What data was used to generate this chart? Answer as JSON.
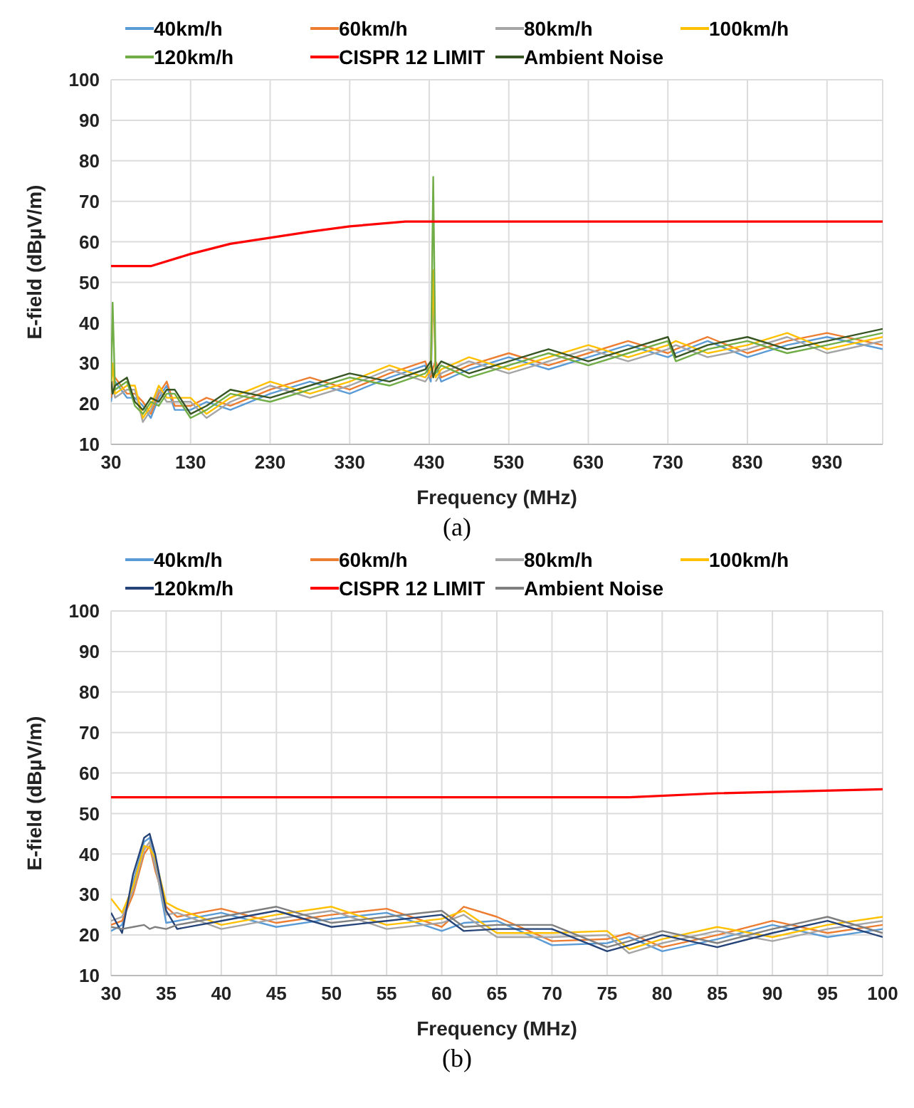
{
  "chart_data": [
    {
      "type": "line",
      "xlabel": "Frequency (MHz)",
      "ylabel": "E-field (dBµV/m)",
      "annotations": [
        "(a)"
      ],
      "legend": "top",
      "grid": true,
      "xlim": [
        30,
        1000
      ],
      "xticks": [
        30,
        130,
        230,
        330,
        430,
        530,
        630,
        730,
        830,
        930
      ],
      "ylim": [
        10,
        100
      ],
      "yticks": [
        10,
        20,
        30,
        40,
        50,
        60,
        70,
        80,
        90,
        100
      ],
      "x": [
        30,
        32,
        35,
        50,
        60,
        70,
        80,
        90,
        100,
        110,
        130,
        150,
        180,
        230,
        280,
        330,
        380,
        425,
        432,
        435,
        438,
        445,
        480,
        530,
        580,
        630,
        680,
        730,
        740,
        780,
        830,
        880,
        930,
        1000
      ],
      "series": [
        {
          "name": "40km/h",
          "color": "#5b9bd5",
          "values": [
            20.5,
            23.5,
            25.5,
            21.5,
            21.5,
            19.5,
            16.5,
            21.5,
            24.5,
            18.5,
            18.5,
            20.5,
            18.5,
            22.5,
            25.5,
            22.5,
            26.5,
            29.5,
            25.5,
            48,
            29.5,
            25.5,
            28.5,
            31.5,
            28.5,
            31.5,
            34.5,
            31.5,
            32.5,
            35.5,
            31.5,
            34.5,
            36.5,
            33.5
          ]
        },
        {
          "name": "60km/h",
          "color": "#ed7d31",
          "values": [
            21.5,
            24.5,
            26.5,
            22.5,
            22.5,
            20.5,
            17.5,
            22.5,
            25.5,
            19.5,
            19.5,
            21.5,
            19.5,
            23.5,
            26.5,
            23.5,
            27.5,
            30.5,
            26.5,
            29,
            30.5,
            26.5,
            29.5,
            32.5,
            29.5,
            32.5,
            35.5,
            32.5,
            33.5,
            36.5,
            32.5,
            35.5,
            37.5,
            34.5
          ]
        },
        {
          "name": "80km/h",
          "color": "#a5a5a5",
          "values": [
            22.5,
            25.5,
            21.5,
            23.5,
            23.5,
            15.5,
            18.5,
            23.5,
            20.5,
            20.5,
            20.5,
            16.5,
            20.5,
            24.5,
            21.5,
            24.5,
            28.5,
            25.5,
            27.5,
            null,
            25.5,
            27.5,
            30.5,
            27.5,
            30.5,
            33.5,
            30.5,
            33.5,
            34.5,
            31.5,
            33.5,
            36.5,
            32.5,
            35.5
          ]
        },
        {
          "name": "100km/h",
          "color": "#ffc000",
          "values": [
            23.5,
            30,
            22.5,
            24.5,
            24.5,
            16.5,
            19.5,
            24.5,
            21.5,
            21.5,
            21.5,
            17.5,
            21.5,
            25.5,
            22.5,
            25.5,
            29.5,
            26.5,
            28.5,
            53,
            26.5,
            28.5,
            31.5,
            28.5,
            31.5,
            34.5,
            31.5,
            34.5,
            35.5,
            32.5,
            34.5,
            37.5,
            33.5,
            36.5
          ]
        },
        {
          "name": "120km/h",
          "color": "#70ad47",
          "values": [
            24.5,
            45,
            23.5,
            25.5,
            19.5,
            17.5,
            20.5,
            19.5,
            22.5,
            22.5,
            16.5,
            18.5,
            22.5,
            20.5,
            23.5,
            26.5,
            24.5,
            27.5,
            29.5,
            76,
            27.5,
            29.5,
            26.5,
            29.5,
            32.5,
            29.5,
            32.5,
            35.5,
            30.5,
            33.5,
            35.5,
            32.5,
            34.5,
            37.5
          ]
        },
        {
          "name": "CISPR 12 LIMIT",
          "color": "#ff0000",
          "x": [
            30,
            80,
            130,
            180,
            230,
            280,
            330,
            400,
            1000
          ],
          "values": [
            54,
            54,
            57,
            59.5,
            61,
            62.5,
            63.8,
            65,
            65
          ]
        },
        {
          "name": "Ambient Noise",
          "color": "#375623",
          "values": [
            25.5,
            22.5,
            24.5,
            26.5,
            20.5,
            18.5,
            21.5,
            20.5,
            23.5,
            23.5,
            17.5,
            19.5,
            23.5,
            21.5,
            24.5,
            27.5,
            25.5,
            28.5,
            30.5,
            26.5,
            28.5,
            30.5,
            27.5,
            30.5,
            33.5,
            30.5,
            33.5,
            36.5,
            31.5,
            34.5,
            36.5,
            33.5,
            35.5,
            38.5
          ]
        }
      ]
    },
    {
      "type": "line",
      "xlabel": "Frequency (MHz)",
      "ylabel": "E-field (dBµV/m)",
      "annotations": [
        "(b)"
      ],
      "legend": "top",
      "grid": true,
      "xlim": [
        30,
        100
      ],
      "xticks": [
        30,
        35,
        40,
        45,
        50,
        55,
        60,
        65,
        70,
        75,
        80,
        85,
        90,
        95,
        100
      ],
      "ylim": [
        10,
        100
      ],
      "yticks": [
        10,
        20,
        30,
        40,
        50,
        60,
        70,
        80,
        90,
        100
      ],
      "x": [
        30,
        31,
        32,
        33,
        33.5,
        34,
        35,
        36,
        40,
        45,
        50,
        55,
        60,
        62,
        65,
        70,
        75,
        77,
        80,
        85,
        90,
        95,
        100
      ],
      "series": [
        {
          "name": "40km/h",
          "color": "#5b9bd5",
          "values": [
            21,
            22.5,
            33,
            43,
            44,
            38,
            23,
            23.5,
            25.5,
            22,
            24,
            25.5,
            21,
            23,
            23.5,
            17.5,
            18,
            19.5,
            16,
            19,
            22.5,
            19.5,
            21.5
          ]
        },
        {
          "name": "60km/h",
          "color": "#ed7d31",
          "values": [
            22.5,
            23.5,
            30,
            40,
            42,
            36,
            27,
            24.5,
            26.5,
            23,
            25,
            26.5,
            22,
            27,
            24.5,
            18.5,
            19,
            20.5,
            17,
            20,
            23.5,
            20.5,
            22.5
          ]
        },
        {
          "name": "80km/h",
          "color": "#a5a5a5",
          "values": [
            23.5,
            24.5,
            31,
            41,
            43,
            37,
            25,
            25.5,
            21.5,
            24,
            26,
            21.5,
            23,
            25,
            19.5,
            19.5,
            20,
            15.5,
            18,
            21,
            18.5,
            21.5,
            23.5
          ]
        },
        {
          "name": "100km/h",
          "color": "#ffc000",
          "values": [
            29,
            25.5,
            32,
            42,
            41.5,
            39,
            28,
            26.5,
            22.5,
            25,
            27,
            22.5,
            24,
            26,
            20.5,
            20.5,
            21,
            16.5,
            19,
            22,
            19.5,
            22.5,
            24.5
          ]
        },
        {
          "name": "120km/h",
          "color": "#264478",
          "values": [
            25.5,
            20.5,
            35,
            44,
            45,
            40,
            26,
            21.5,
            23.5,
            26,
            22,
            23.5,
            25,
            21,
            21.5,
            21.5,
            16,
            17.5,
            20,
            17,
            20.5,
            23.5,
            19.5
          ]
        },
        {
          "name": "CISPR 12 LIMIT",
          "color": "#ff0000",
          "x": [
            30,
            77,
            85,
            100
          ],
          "values": [
            54,
            54,
            55,
            56
          ]
        },
        {
          "name": "Ambient Noise",
          "color": "#7f7f7f",
          "values": [
            22,
            21.5,
            22,
            22.5,
            21.5,
            22,
            21.5,
            22.5,
            24.5,
            27,
            23,
            24.5,
            26,
            22,
            22.5,
            22.5,
            17,
            18.5,
            21,
            18,
            21.5,
            24.5,
            20.5
          ]
        }
      ]
    }
  ]
}
